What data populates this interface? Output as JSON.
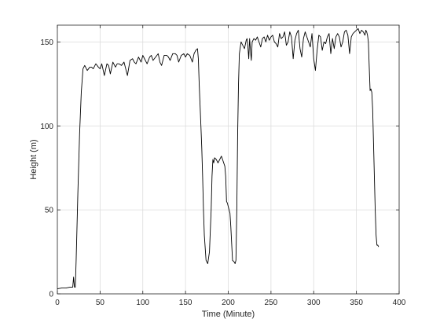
{
  "chart_data": {
    "type": "line",
    "title": "",
    "xlabel": "Time (Minute)",
    "ylabel": "Height (m)",
    "xlim": [
      0,
      400
    ],
    "ylim": [
      0,
      160
    ],
    "xticks": [
      0,
      50,
      100,
      150,
      200,
      250,
      300,
      350,
      400
    ],
    "yticks": [
      0,
      50,
      100,
      150
    ],
    "grid": true,
    "legend": "none",
    "line_color": "#000000",
    "series": [
      {
        "x": [
          0,
          5,
          10,
          15,
          18,
          19,
          20,
          21,
          22,
          24,
          26,
          28,
          30,
          32,
          35,
          38,
          40,
          42,
          45,
          48,
          50,
          52,
          55,
          58,
          60,
          62,
          65,
          68,
          70,
          72,
          75,
          78,
          80,
          82,
          85,
          88,
          90,
          92,
          95,
          98,
          100,
          102,
          105,
          108,
          110,
          112,
          115,
          118,
          120,
          122,
          125,
          128,
          130,
          132,
          135,
          138,
          140,
          142,
          145,
          148,
          150,
          152,
          155,
          158,
          160,
          162,
          164,
          165,
          166,
          168,
          169,
          170,
          171,
          172,
          174,
          176,
          178,
          180,
          181,
          182,
          183,
          184,
          186,
          188,
          190,
          192,
          194,
          196,
          197,
          198,
          199,
          200,
          201,
          202,
          203,
          205,
          207,
          208,
          209,
          210,
          211,
          212,
          213,
          215,
          217,
          219,
          221,
          222,
          223,
          224,
          225,
          226,
          227,
          228,
          230,
          232,
          234,
          236,
          238,
          240,
          242,
          244,
          246,
          248,
          250,
          252,
          254,
          256,
          258,
          260,
          262,
          264,
          266,
          268,
          270,
          272,
          274,
          276,
          278,
          280,
          282,
          284,
          286,
          288,
          290,
          292,
          294,
          296,
          298,
          300,
          302,
          304,
          306,
          308,
          310,
          312,
          314,
          316,
          318,
          320,
          322,
          324,
          326,
          328,
          330,
          332,
          334,
          336,
          338,
          340,
          342,
          344,
          346,
          348,
          350,
          352,
          354,
          356,
          358,
          360,
          361,
          362,
          363,
          364,
          365,
          366,
          367,
          368,
          369,
          370,
          371,
          372,
          373,
          374,
          375,
          376
        ],
        "y": [
          3,
          3.5,
          3.5,
          4,
          4,
          10,
          4,
          4,
          20,
          60,
          95,
          120,
          134,
          136,
          133,
          135,
          135,
          134,
          137,
          135,
          134,
          137,
          130,
          137,
          136,
          131,
          138,
          135,
          137,
          137,
          136,
          138,
          134,
          130,
          139,
          140,
          138,
          137,
          141,
          138,
          142,
          140,
          137,
          141,
          142,
          139,
          141,
          143,
          138,
          136,
          142,
          142,
          141,
          139,
          143,
          143,
          142,
          138,
          142,
          143,
          141,
          143,
          142,
          138,
          143,
          145,
          146,
          140,
          125,
          100,
          87,
          70,
          50,
          35,
          20,
          18,
          25,
          50,
          70,
          80,
          78,
          81,
          80,
          78,
          80,
          82,
          79,
          76,
          70,
          55,
          54,
          52,
          50,
          48,
          40,
          20,
          19,
          18,
          20,
          50,
          95,
          125,
          143,
          150,
          148,
          146,
          151,
          152,
          147,
          140,
          152,
          145,
          139,
          150,
          152,
          151,
          153,
          150,
          147,
          152,
          153,
          150,
          154,
          151,
          153,
          154,
          150,
          149,
          147,
          155,
          152,
          153,
          156,
          148,
          150,
          156,
          153,
          140,
          151,
          155,
          157,
          146,
          141,
          152,
          156,
          153,
          150,
          147,
          155,
          140,
          133,
          145,
          154,
          153,
          145,
          150,
          149,
          153,
          155,
          143,
          152,
          146,
          153,
          155,
          153,
          147,
          150,
          156,
          157,
          154,
          143,
          153,
          155,
          156,
          157,
          158,
          155,
          157,
          156,
          154,
          157,
          156,
          154,
          150,
          135,
          121,
          122,
          120,
          110,
          90,
          70,
          50,
          35,
          29,
          29,
          28
        ]
      }
    ]
  }
}
